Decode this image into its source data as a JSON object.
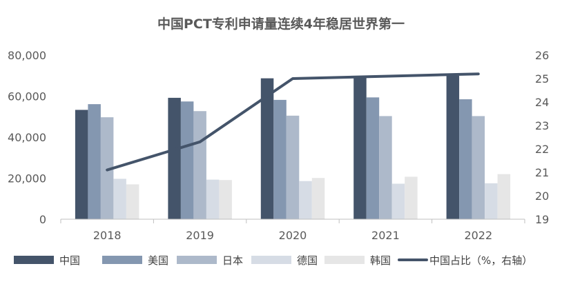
{
  "chart_data": {
    "type": "bar",
    "title": "中国PCT专利申请量连续4年稳居世界第一",
    "categories": [
      "2018",
      "2019",
      "2020",
      "2021",
      "2022"
    ],
    "series": [
      {
        "name": "中国",
        "type": "bar",
        "axis": "left",
        "color": "#44546a",
        "values": [
          53300,
          59200,
          68700,
          69600,
          70000
        ]
      },
      {
        "name": "美国",
        "type": "bar",
        "axis": "left",
        "color": "#8497b0",
        "values": [
          56100,
          57400,
          58200,
          59400,
          58500
        ]
      },
      {
        "name": "日本",
        "type": "bar",
        "axis": "left",
        "color": "#adb9ca",
        "values": [
          49700,
          52700,
          50500,
          50300,
          50300
        ]
      },
      {
        "name": "德国",
        "type": "bar",
        "axis": "left",
        "color": "#d6dce5",
        "values": [
          19700,
          19300,
          18600,
          17300,
          17500
        ]
      },
      {
        "name": "韩国",
        "type": "bar",
        "axis": "left",
        "color": "#e6e6e6",
        "values": [
          17000,
          19100,
          20100,
          20700,
          22000
        ]
      },
      {
        "name": "中国占比（%，右轴）",
        "type": "line",
        "axis": "right",
        "color": "#44546a",
        "values": [
          21.1,
          22.3,
          25.0,
          25.1,
          25.2
        ]
      }
    ],
    "y_left": {
      "min": 0,
      "max": 80000,
      "ticks": [
        0,
        20000,
        40000,
        60000,
        80000
      ],
      "tick_labels": [
        "0",
        "20,000",
        "40,000",
        "60,000",
        "80,000"
      ]
    },
    "y_right": {
      "min": 19,
      "max": 26,
      "ticks": [
        19,
        20,
        21,
        22,
        23,
        24,
        25,
        26
      ],
      "tick_labels": [
        "19",
        "20",
        "21",
        "22",
        "23",
        "24",
        "25",
        "26"
      ]
    },
    "grid": false,
    "legend_position": "bottom"
  }
}
